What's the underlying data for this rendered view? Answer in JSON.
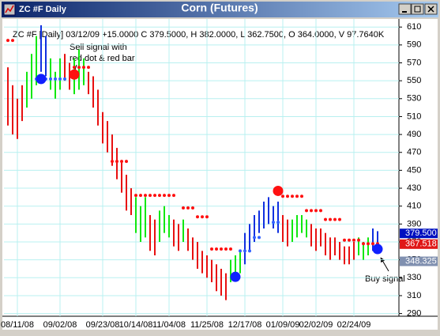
{
  "window_title": "ZC #F Daily",
  "chart_data": {
    "type": "ohlc",
    "title": "Corn (Futures)",
    "header": "ZC #F [Daily] 03/12/09 +15.0000 C 379.5000, H 382.0000, L 362.7500, O 364.0000, V 97.7640K",
    "annotations": [
      "Sell signal with",
      "red dot & red bar",
      "Buy signal"
    ],
    "categories": [
      null,
      null,
      "08/11/08",
      null,
      null,
      null,
      null,
      null,
      null,
      null,
      null,
      "09/02/08",
      null,
      null,
      null,
      null,
      null,
      null,
      null,
      null,
      "09/23/08",
      null,
      null,
      null,
      null,
      null,
      null,
      "10/14/08",
      null,
      null,
      null,
      null,
      null,
      null,
      "11/04/08",
      null,
      null,
      null,
      null,
      null,
      null,
      null,
      "11/25/08",
      null,
      null,
      null,
      null,
      null,
      null,
      null,
      "12/17/08",
      null,
      null,
      null,
      null,
      null,
      null,
      null,
      "01/09/09",
      null,
      null,
      null,
      null,
      null,
      null,
      "02/02/09",
      null,
      null,
      null,
      null,
      null,
      null,
      null,
      "02/24/09",
      null,
      null,
      null,
      null,
      null
    ],
    "highs": [
      565,
      545,
      530,
      545,
      560,
      580,
      600,
      612,
      600,
      575,
      560,
      575,
      580,
      570,
      575,
      585,
      575,
      560,
      555,
      540,
      515,
      505,
      490,
      475,
      460,
      445,
      430,
      420,
      410,
      420,
      400,
      395,
      405,
      410,
      400,
      395,
      390,
      395,
      385,
      375,
      370,
      360,
      355,
      350,
      345,
      340,
      335,
      350,
      355,
      360,
      380,
      390,
      400,
      405,
      415,
      420,
      410,
      415,
      400,
      395,
      395,
      400,
      400,
      395,
      390,
      385,
      385,
      380,
      375,
      375,
      370,
      365,
      365,
      370,
      375,
      370,
      375,
      385,
      382
    ],
    "lows": [
      500,
      490,
      485,
      505,
      520,
      530,
      545,
      560,
      555,
      540,
      530,
      540,
      550,
      540,
      535,
      540,
      545,
      535,
      520,
      500,
      480,
      470,
      455,
      440,
      425,
      405,
      400,
      380,
      370,
      375,
      360,
      355,
      370,
      380,
      375,
      365,
      360,
      370,
      360,
      350,
      340,
      335,
      330,
      325,
      315,
      310,
      305,
      325,
      330,
      335,
      345,
      360,
      370,
      380,
      385,
      390,
      385,
      380,
      370,
      365,
      370,
      375,
      380,
      375,
      365,
      360,
      365,
      355,
      350,
      355,
      350,
      345,
      345,
      350,
      355,
      350,
      355,
      360,
      362
    ],
    "bar_colors": [
      "red",
      "red",
      "red",
      "red",
      "green",
      "green",
      "green",
      "blue",
      "blue",
      "green",
      "green",
      "green",
      "red",
      "red",
      "green",
      "green",
      "green",
      "red",
      "red",
      "red",
      "red",
      "red",
      "red",
      "red",
      "red",
      "red",
      "red",
      "green",
      "green",
      "green",
      "red",
      "red",
      "green",
      "green",
      "green",
      "red",
      "red",
      "green",
      "red",
      "red",
      "red",
      "red",
      "red",
      "red",
      "red",
      "red",
      "red",
      "green",
      "green",
      "green",
      "blue",
      "blue",
      "blue",
      "blue",
      "blue",
      "blue",
      "blue",
      "blue",
      "red",
      "red",
      "green",
      "green",
      "green",
      "green",
      "red",
      "red",
      "red",
      "red",
      "red",
      "red",
      "red",
      "red",
      "red",
      "red",
      "green",
      "green",
      "green",
      "blue",
      "blue"
    ],
    "palette": {
      "red": "#e81010",
      "green": "#10e810",
      "blue": "#1030e0"
    },
    "stops_red": [
      595,
      595,
      null,
      null,
      null,
      null,
      null,
      null,
      null,
      null,
      null,
      null,
      null,
      null,
      565,
      565,
      565,
      565,
      null,
      null,
      null,
      null,
      460,
      460,
      460,
      460,
      null,
      422,
      422,
      422,
      422,
      422,
      422,
      422,
      422,
      422,
      null,
      408,
      408,
      408,
      398,
      398,
      398,
      362,
      362,
      362,
      362,
      362,
      null,
      null,
      null,
      null,
      null,
      null,
      null,
      null,
      null,
      null,
      421,
      421,
      421,
      421,
      421,
      405,
      405,
      405,
      405,
      395,
      395,
      395,
      395,
      372,
      372,
      372,
      372,
      368,
      368,
      368,
      368
    ],
    "stops_blue": [
      null,
      null,
      null,
      null,
      null,
      null,
      552,
      552,
      552,
      552,
      552,
      552,
      552,
      null,
      null,
      null,
      null,
      null,
      null,
      null,
      null,
      null,
      null,
      null,
      null,
      null,
      null,
      null,
      null,
      null,
      null,
      null,
      null,
      null,
      null,
      null,
      null,
      null,
      null,
      null,
      null,
      null,
      null,
      null,
      null,
      null,
      null,
      null,
      null,
      360,
      360,
      360,
      375,
      375,
      null,
      null,
      392,
      392,
      null,
      null,
      null,
      null,
      null,
      null,
      null,
      null,
      null,
      null,
      null,
      null,
      null,
      null,
      null,
      null,
      null,
      null,
      null,
      null,
      null
    ],
    "signals": [
      {
        "index": 7,
        "value": 552,
        "color": "#1020ff"
      },
      {
        "index": 14,
        "value": 557,
        "color": "#ff1010"
      },
      {
        "index": 57,
        "value": 427,
        "color": "#ff1010"
      },
      {
        "index": 48,
        "value": 331,
        "color": "#1020ff"
      },
      {
        "index": 78,
        "value": 362,
        "color": "#1020ff"
      }
    ],
    "ylim": [
      287,
      619
    ],
    "yticks": [
      290,
      310,
      330,
      350,
      370,
      390,
      410,
      430,
      450,
      470,
      490,
      510,
      530,
      550,
      570,
      590,
      610
    ],
    "price_boxes": [
      {
        "value": 379.5,
        "label": "379.500",
        "color": "#0010c0"
      },
      {
        "value": 367.518,
        "label": "367.518",
        "color": "#e01818"
      },
      {
        "value": 348.325,
        "label": "348.325",
        "color": "#8090b0"
      }
    ],
    "grid": true
  }
}
